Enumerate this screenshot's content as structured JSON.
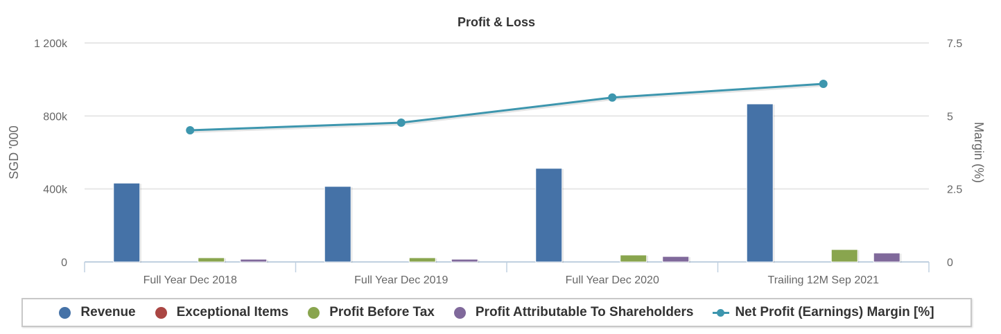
{
  "chart_data": {
    "type": "bar",
    "title": "Profit & Loss",
    "categories": [
      "Full Year Dec 2018",
      "Full Year Dec 2019",
      "Full Year Dec 2020",
      "Trailing 12M Sep 2021"
    ],
    "y_left": {
      "label": "SGD '000",
      "range": [
        0,
        1200
      ],
      "ticks": [
        0,
        400,
        800,
        1200
      ],
      "tick_labels": [
        "0",
        "400k",
        "800k",
        "1 200k"
      ]
    },
    "y_right": {
      "label": "Margin (%)",
      "range": [
        0,
        7.5
      ],
      "ticks": [
        0,
        2.5,
        5,
        7.5
      ],
      "tick_labels": [
        "0",
        "2.5",
        "5",
        "7.5"
      ]
    },
    "grid": true,
    "legend_position": "bottom",
    "series": [
      {
        "name": "Revenue",
        "type": "bar",
        "axis": "left",
        "color": "#4572A7",
        "values": [
          432,
          414,
          513,
          866
        ]
      },
      {
        "name": "Exceptional Items",
        "type": "bar",
        "axis": "left",
        "color": "#AA4643",
        "values": [
          0,
          0,
          0,
          0
        ]
      },
      {
        "name": "Profit Before Tax",
        "type": "bar",
        "axis": "left",
        "color": "#89A54E",
        "values": [
          23,
          23,
          38,
          68
        ]
      },
      {
        "name": "Profit Attributable To Shareholders",
        "type": "bar",
        "axis": "left",
        "color": "#80699B",
        "values": [
          15,
          15,
          30,
          49
        ]
      },
      {
        "name": "Net Profit (Earnings) Margin [%]",
        "type": "line",
        "axis": "right",
        "color": "#3D96AE",
        "values": [
          4.51,
          4.77,
          5.63,
          6.1
        ]
      }
    ]
  }
}
